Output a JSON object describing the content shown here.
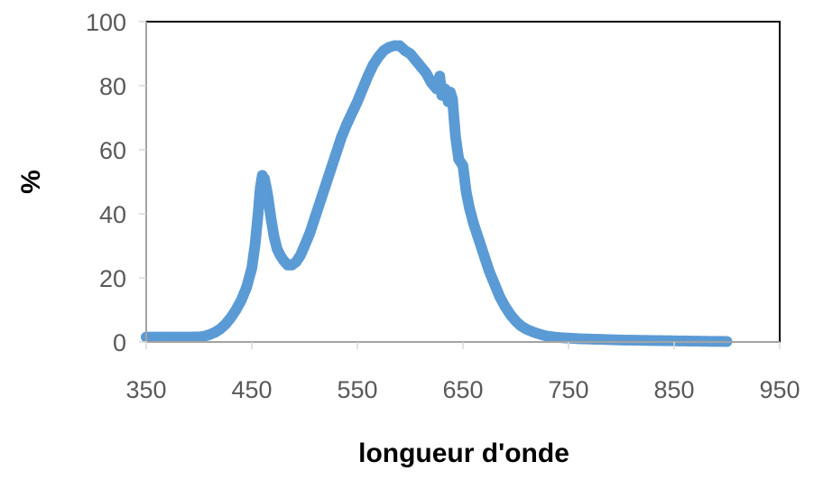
{
  "chart_data": {
    "type": "scatter",
    "title": "",
    "xlabel": "longueur d'onde",
    "ylabel": "%",
    "xlim": [
      350,
      950
    ],
    "ylim": [
      0,
      100
    ],
    "x_ticks": [
      "350",
      "450",
      "550",
      "650",
      "750",
      "850",
      "950"
    ],
    "y_ticks": [
      "0",
      "20",
      "40",
      "60",
      "80",
      "100"
    ],
    "grid": false,
    "legend": "none",
    "series_color": "#5B9BD5",
    "series": [
      {
        "name": "",
        "x": [
          350,
          360,
          370,
          380,
          390,
          400,
          405,
          410,
          415,
          420,
          425,
          430,
          435,
          440,
          445,
          450,
          453,
          456,
          458,
          460,
          462,
          465,
          468,
          471,
          474,
          477,
          480,
          484,
          488,
          492,
          496,
          500,
          505,
          510,
          515,
          520,
          525,
          530,
          535,
          540,
          545,
          550,
          555,
          560,
          565,
          570,
          575,
          580,
          585,
          590,
          595,
          600,
          605,
          610,
          615,
          620,
          625,
          628,
          630,
          633,
          636,
          638,
          640,
          643,
          646,
          650,
          653,
          656,
          660,
          665,
          670,
          675,
          680,
          685,
          690,
          695,
          700,
          705,
          710,
          715,
          720,
          725,
          730,
          740,
          750,
          760,
          770,
          780,
          790,
          800,
          820,
          840,
          860,
          880,
          900
        ],
        "y": [
          1.5,
          1.5,
          1.5,
          1.5,
          1.5,
          1.6,
          1.8,
          2.3,
          3,
          4,
          5.5,
          7.5,
          10,
          13,
          17,
          23,
          30,
          40,
          48,
          52,
          51,
          46,
          39,
          33,
          29,
          27,
          25.5,
          24,
          24,
          25,
          27,
          30,
          34,
          39,
          44,
          49,
          54,
          59,
          64,
          68,
          71.5,
          75,
          79,
          83,
          86.5,
          89,
          91,
          92,
          92.5,
          92.5,
          91,
          90,
          88,
          86,
          84,
          81,
          79,
          83,
          77,
          79,
          75,
          78,
          76,
          64,
          57,
          55,
          47,
          42,
          37,
          32,
          27,
          22,
          18,
          14,
          11,
          8.5,
          6.5,
          5,
          4,
          3.3,
          2.7,
          2.2,
          1.8,
          1.4,
          1.2,
          1.0,
          0.9,
          0.8,
          0.7,
          0.6,
          0.5,
          0.4,
          0.3,
          0.2,
          0.15
        ]
      }
    ]
  }
}
